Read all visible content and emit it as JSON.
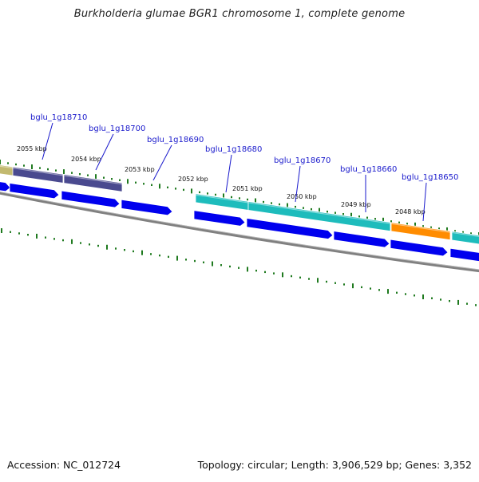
{
  "title": "Burkholderia glumae BGR1 chromosome 1, complete genome",
  "footer": {
    "accession": "Accession: NC_012724",
    "stats": "Topology: circular; Length: 3,906,529 bp; Genes: 3,352"
  },
  "colors": {
    "backbone": "#7f7f7f",
    "tick": "#1f7a1f",
    "gene_arrow": "#0000ee",
    "label": "#1a1acc",
    "feature_khaki": "#c2b96f",
    "feature_slate": "#4a4a8f",
    "feature_cyan": "#1ebcbc",
    "feature_orange": "#ff8c00"
  },
  "ruler": [
    {
      "label": "2055 kbp"
    },
    {
      "label": "2054 kbp"
    },
    {
      "label": "2053 kbp"
    },
    {
      "label": "2052 kbp"
    },
    {
      "label": "2051 kbp"
    },
    {
      "label": "2050 kbp"
    },
    {
      "label": "2049 kbp"
    },
    {
      "label": "2048 kbp"
    }
  ],
  "genes": [
    {
      "locus_tag": "bglu_1g18710"
    },
    {
      "locus_tag": "bglu_1g18700"
    },
    {
      "locus_tag": "bglu_1g18690"
    },
    {
      "locus_tag": "bglu_1g18680"
    },
    {
      "locus_tag": "bglu_1g18670"
    },
    {
      "locus_tag": "bglu_1g18660"
    },
    {
      "locus_tag": "bglu_1g18650"
    }
  ]
}
